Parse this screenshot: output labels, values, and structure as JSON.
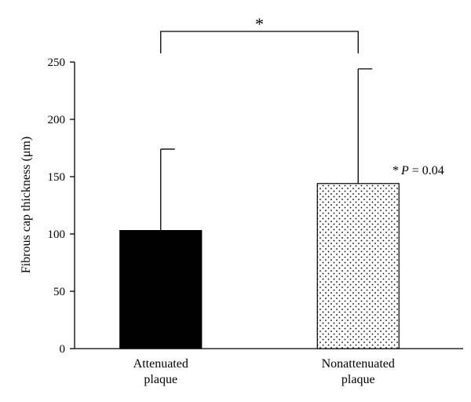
{
  "chart_data": {
    "type": "bar",
    "categories": [
      [
        "Attenuated",
        "plaque"
      ],
      [
        "Nonattenuated",
        "plaque"
      ]
    ],
    "values": [
      103,
      144
    ],
    "error_upper": [
      174,
      244
    ],
    "fills": [
      "solid-black",
      "dotted"
    ],
    "ylabel": "Fibrous cap thickness (μm)",
    "ylim": [
      0,
      250
    ],
    "yticks": [
      0,
      50,
      100,
      150,
      200,
      250
    ],
    "significance_marker": "*",
    "annotation": {
      "prefix": "*",
      "var": "P",
      "text": " = 0.04"
    },
    "grid": false,
    "colors": {
      "bar_solid": "#000000",
      "bar_dotted_fill": "#ffffff",
      "dots": "#000000",
      "axis": "#000000"
    }
  }
}
